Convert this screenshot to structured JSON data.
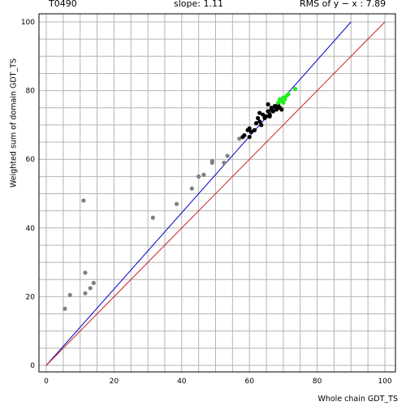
{
  "header": {
    "target": "T0490",
    "slope": "slope: 1.11",
    "rms": "RMS of  y − x : 7.89"
  },
  "chart_data": {
    "type": "scatter",
    "xlabel": "Whole chain GDT_TS",
    "ylabel": "Weighted sum of domain GDT_TS",
    "xlim": [
      -2,
      102
    ],
    "ylim": [
      -2,
      102
    ],
    "xticks": [
      0,
      20,
      40,
      60,
      80,
      100
    ],
    "yticks": [
      0,
      20,
      40,
      60,
      80,
      100
    ],
    "grid": true,
    "lines": [
      {
        "color": "#0000cc",
        "x": [
          0,
          90
        ],
        "y": [
          0,
          100
        ]
      },
      {
        "color": "#cc2222",
        "x": [
          0,
          100
        ],
        "y": [
          0,
          100
        ]
      }
    ],
    "series": [
      {
        "color": "#808080",
        "points": [
          [
            5.5,
            16.5
          ],
          [
            7,
            20.5
          ],
          [
            11.5,
            21
          ],
          [
            11.5,
            27
          ],
          [
            11,
            48
          ],
          [
            13,
            22.5
          ],
          [
            14,
            24
          ],
          [
            31.5,
            43
          ],
          [
            38.5,
            47
          ],
          [
            43,
            51.5
          ],
          [
            45,
            55
          ],
          [
            46.5,
            55.5
          ],
          [
            49,
            59
          ],
          [
            49,
            59.5
          ],
          [
            52.5,
            59
          ],
          [
            53.5,
            61
          ],
          [
            57,
            66
          ]
        ]
      },
      {
        "color": "#000000",
        "points": [
          [
            58,
            66.5
          ],
          [
            58.5,
            67
          ],
          [
            59.5,
            68.5
          ],
          [
            60,
            69
          ],
          [
            60.5,
            68
          ],
          [
            61.5,
            68.5
          ],
          [
            62,
            70.5
          ],
          [
            62.5,
            72
          ],
          [
            63,
            73.5
          ],
          [
            63,
            71
          ],
          [
            63.5,
            70
          ],
          [
            64,
            73
          ],
          [
            64.5,
            72
          ],
          [
            65,
            72.5
          ],
          [
            65.5,
            74
          ],
          [
            65.5,
            76
          ],
          [
            66,
            73
          ],
          [
            66.5,
            74.5
          ],
          [
            66.5,
            75
          ],
          [
            67,
            74
          ],
          [
            67.5,
            75.5
          ],
          [
            68,
            75
          ],
          [
            68,
            74.5
          ],
          [
            68.5,
            76
          ],
          [
            69,
            75
          ],
          [
            69.5,
            74.5
          ],
          [
            66,
            72.5
          ],
          [
            60,
            66.5
          ]
        ]
      },
      {
        "color": "#22ee22",
        "points": [
          [
            68.5,
            76.5
          ],
          [
            69,
            77.5
          ],
          [
            69.5,
            77
          ],
          [
            70,
            78
          ],
          [
            70.5,
            77.5
          ],
          [
            71,
            78.5
          ],
          [
            71.5,
            79
          ],
          [
            70,
            76.5
          ],
          [
            73.5,
            80.5
          ]
        ]
      }
    ]
  }
}
